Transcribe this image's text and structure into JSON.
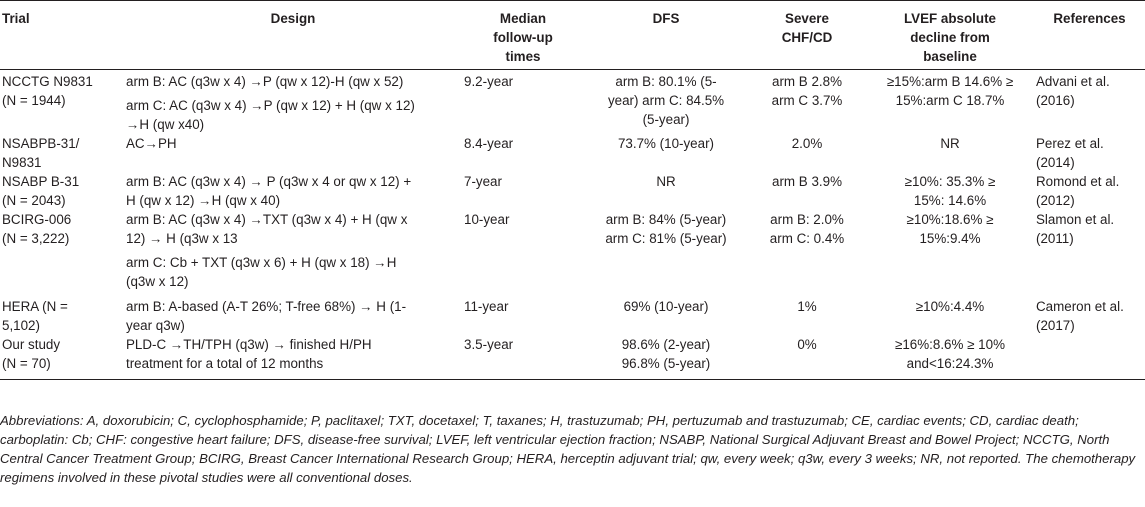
{
  "headers": {
    "trial": "Trial",
    "design": "Design",
    "median_followup": [
      "Median",
      "follow-up",
      "times"
    ],
    "dfs": "DFS",
    "severe": [
      "Severe",
      "CHF/CD"
    ],
    "lvef": [
      "LVEF absolute",
      "decline from",
      "baseline"
    ],
    "references": "References"
  },
  "rows": [
    {
      "trial": [
        "NCCTG N9831",
        "(N = 1944)"
      ],
      "design": [
        "arm B: AC (q3w x 4) →P (qw x 12)-H (qw x 52)",
        "arm C: AC (q3w x 4) →P (qw x 12) + H (qw x 12)",
        "→H (qw x40)"
      ],
      "followup": "9.2-year",
      "dfs": [
        "arm B: 80.1% (5-",
        "year) arm C: 84.5%",
        "(5-year)"
      ],
      "severe": [
        "arm B 2.8%",
        "arm C 3.7%"
      ],
      "lvef": [
        "≥15%:arm B 14.6% ≥",
        "15%:arm C 18.7%"
      ],
      "ref": [
        "Advani et al.",
        "(2016)"
      ]
    },
    {
      "trial": [
        "NSABPB-31/",
        "N9831"
      ],
      "design": [
        "AC→PH"
      ],
      "followup": "8.4-year",
      "dfs": [
        "73.7% (10-year)"
      ],
      "severe": [
        "2.0%"
      ],
      "lvef": [
        "NR"
      ],
      "ref": [
        "Perez et al.",
        "(2014)"
      ]
    },
    {
      "trial": [
        "NSABP B-31",
        "(N = 2043)"
      ],
      "design": [
        "arm B: AC (q3w x 4) → P (q3w x 4 or qw x 12) +",
        "H (qw x 12) →H (qw x 40)"
      ],
      "followup": "7-year",
      "dfs": [
        "NR"
      ],
      "severe": [
        "arm B 3.9%"
      ],
      "lvef": [
        "≥10%: 35.3% ≥",
        "15%: 14.6%"
      ],
      "ref": [
        "Romond et al.",
        "(2012)"
      ]
    },
    {
      "trial": [
        "BCIRG-006",
        "(N = 3,222)"
      ],
      "design": [
        "arm B: AC (q3w x 4) →TXT (q3w x 4) + H (qw x",
        "12) → H (q3w x 13",
        "arm C: Cb + TXT (q3w x 6) + H (qw x 18) →H",
        "(q3w x 12)"
      ],
      "followup": "10-year",
      "dfs": [
        "arm B: 84% (5-year)",
        "arm C: 81% (5-year)"
      ],
      "severe": [
        "arm B: 2.0%",
        "arm C: 0.4%"
      ],
      "lvef": [
        "≥10%:18.6% ≥",
        "15%:9.4%"
      ],
      "ref": [
        "Slamon et al.",
        "(2011)"
      ]
    },
    {
      "trial": [
        "HERA (N =",
        "5,102)"
      ],
      "design": [
        "arm B: A-based (A-T 26%; T-free 68%) → H (1-",
        "year q3w)"
      ],
      "followup": "11-year",
      "dfs": [
        "69% (10-year)"
      ],
      "severe": [
        "1%"
      ],
      "lvef": [
        "≥10%:4.4%"
      ],
      "ref": [
        "Cameron et al.",
        "(2017)"
      ]
    },
    {
      "trial": [
        "Our study",
        "(N = 70)"
      ],
      "design": [
        "PLD-C →TH/TPH (q3w) → finished H/PH",
        "treatment for a total of 12 months"
      ],
      "followup": "3.5-year",
      "dfs": [
        "98.6% (2-year)",
        "96.8% (5-year)"
      ],
      "severe": [
        "0%"
      ],
      "lvef": [
        "≥16%:8.6% ≥ 10%",
        "and<16:24.3%"
      ],
      "ref": []
    }
  ],
  "footnote": "Abbreviations: A, doxorubicin; C, cyclophosphamide; P, paclitaxel; TXT, docetaxel; T, taxanes; H, trastuzumab; PH, pertuzumab and trastuzumab; CE, cardiac events; CD, cardiac death; carboplatin: Cb; CHF: congestive heart failure; DFS, disease-free survival; LVEF, left ventricular ejection fraction; NSABP, National Surgical Adjuvant Breast and Bowel Project; NCCTG, North Central Cancer Treatment Group; BCIRG, Breast Cancer International Research Group; HERA, herceptin adjuvant trial; qw, every week; q3w, every 3 weeks; NR, not reported. The chemotherapy regimens involved in these pivotal studies were all conventional doses."
}
